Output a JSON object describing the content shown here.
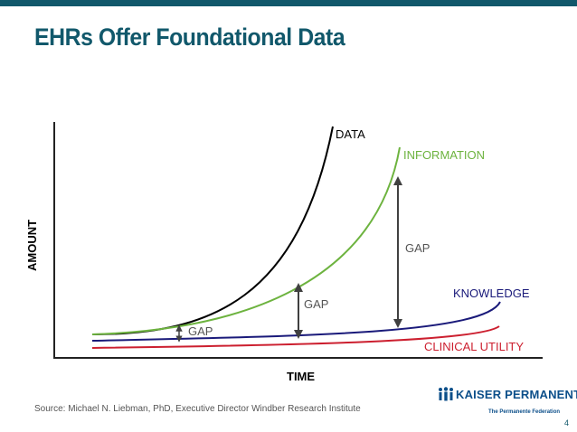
{
  "slide": {
    "title": "EHRs Offer Foundational Data",
    "source": "Source: Michael N. Liebman, PhD, Executive Director Windber Research Institute",
    "page_number": "4"
  },
  "logo": {
    "name": "KAISER PERMANENTE",
    "registered": "®",
    "tagline": "The Permanente Federation"
  },
  "diagram": {
    "y_axis_label": "AMOUNT",
    "x_axis_label": "TIME",
    "curves": {
      "data": {
        "label": "DATA",
        "color": "#000000"
      },
      "information": {
        "label": "INFORMATION",
        "color": "#6db33f"
      },
      "knowledge": {
        "label": "KNOWLEDGE",
        "color": "#1a1a7a"
      },
      "clinical_utility": {
        "label": "CLINICAL UTILITY",
        "color": "#cc1f2f"
      }
    },
    "gaps": [
      {
        "label": "GAP",
        "between": "information and knowledge",
        "size": "small"
      },
      {
        "label": "GAP",
        "between": "information and knowledge",
        "size": "medium"
      },
      {
        "label": "GAP",
        "between": "information and knowledge",
        "size": "large"
      }
    ]
  },
  "colors": {
    "brand": "#11586b",
    "arrow": "#404040"
  }
}
